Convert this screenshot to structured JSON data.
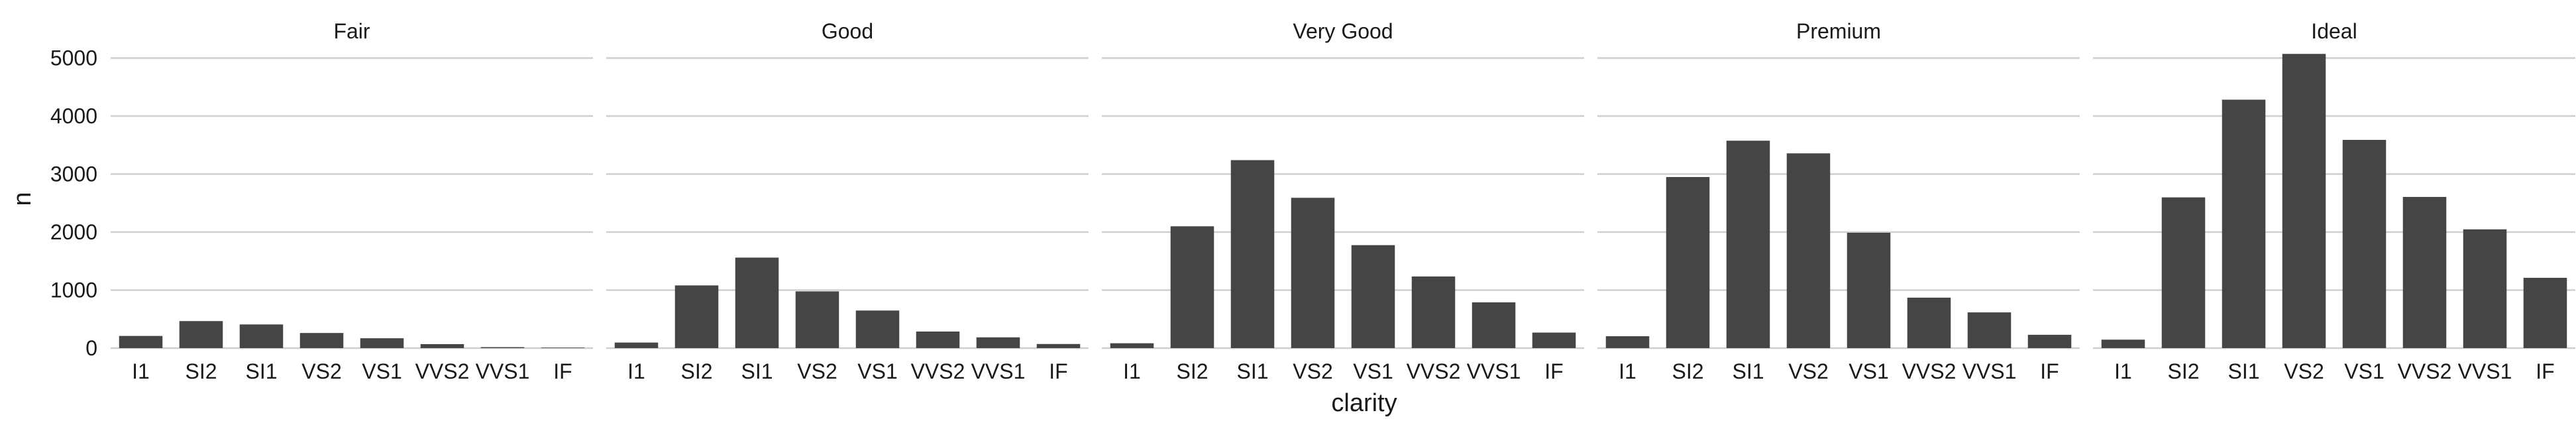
{
  "chart_data": {
    "type": "bar",
    "facet_by": "cut",
    "xlabel": "clarity",
    "ylabel": "n",
    "ylim": [
      0,
      5200
    ],
    "yticks": [
      0,
      1000,
      2000,
      3000,
      4000,
      5000
    ],
    "ytick_labels": [
      "0",
      "1000",
      "2000",
      "3000",
      "4000",
      "5000"
    ],
    "grid": true,
    "categories": [
      "I1",
      "SI2",
      "SI1",
      "VS2",
      "VS1",
      "VVS2",
      "VVS1",
      "IF"
    ],
    "bar_color": "#454545",
    "grid_color": "#cfcfcf",
    "facets": [
      {
        "title": "Fair",
        "values": [
          210,
          466,
          408,
          261,
          170,
          69,
          17,
          9
        ]
      },
      {
        "title": "Good",
        "values": [
          96,
          1081,
          1560,
          978,
          648,
          286,
          186,
          71
        ]
      },
      {
        "title": "Very Good",
        "values": [
          84,
          2100,
          3240,
          2591,
          1775,
          1235,
          789,
          268
        ]
      },
      {
        "title": "Premium",
        "values": [
          205,
          2949,
          3575,
          3357,
          1989,
          870,
          616,
          230
        ]
      },
      {
        "title": "Ideal",
        "values": [
          146,
          2598,
          4282,
          5071,
          3589,
          2606,
          2047,
          1212
        ]
      }
    ]
  }
}
